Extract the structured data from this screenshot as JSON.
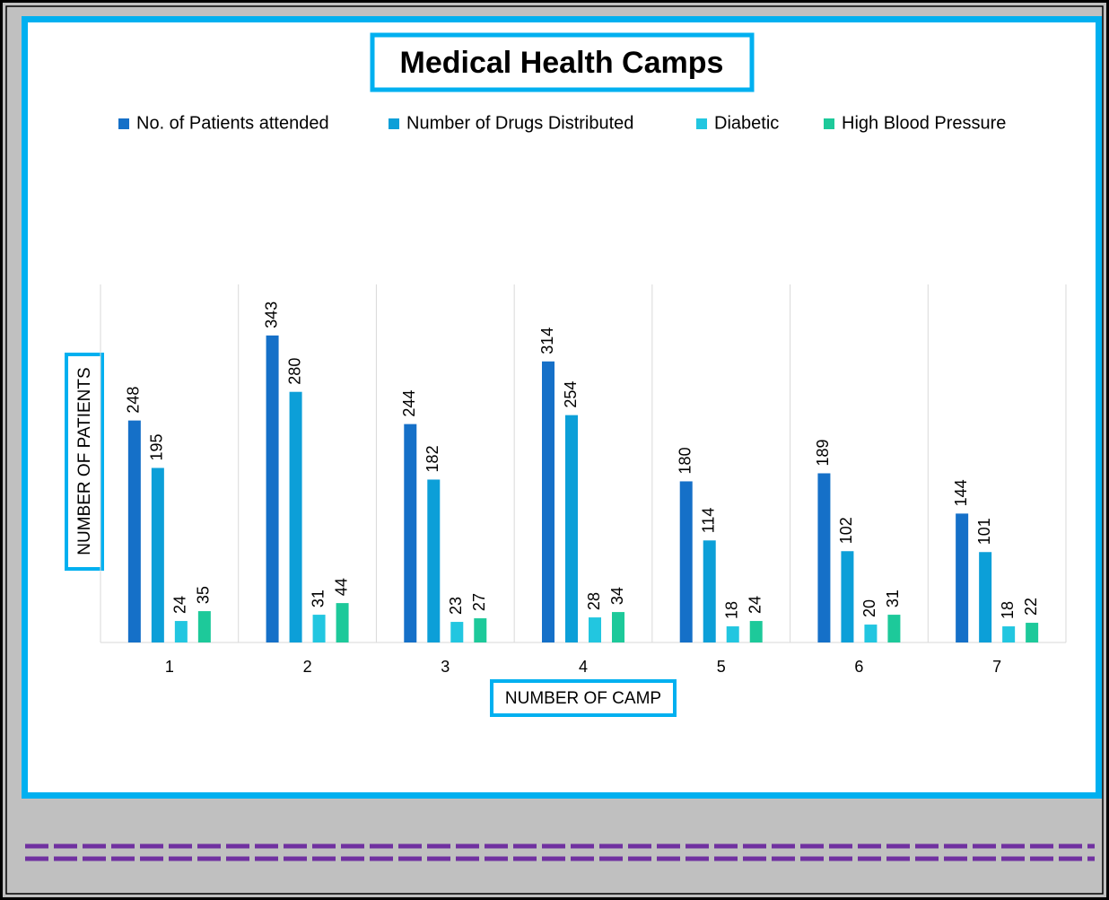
{
  "chart_data": {
    "type": "bar",
    "title": "Medical Health Camps",
    "x_label": "NUMBER OF CAMP",
    "y_label": "NUMBER OF PATIENTS",
    "categories": [
      "1",
      "2",
      "3",
      "4",
      "5",
      "6",
      "7"
    ],
    "series": [
      {
        "name": "No. of Patients attended",
        "color": "#1570c8",
        "values": [
          248,
          343,
          244,
          314,
          180,
          189,
          144
        ]
      },
      {
        "name": "Number of Drugs Distributed",
        "color": "#0c9fd8",
        "values": [
          195,
          280,
          182,
          254,
          114,
          102,
          101
        ]
      },
      {
        "name": "Diabetic",
        "color": "#22c6e0",
        "values": [
          24,
          31,
          23,
          28,
          18,
          20,
          18
        ]
      },
      {
        "name": "High Blood Pressure",
        "color": "#1dc99a",
        "values": [
          35,
          44,
          27,
          34,
          24,
          31,
          22
        ]
      }
    ],
    "ylim": [
      0,
      400
    ],
    "legend": "top"
  }
}
